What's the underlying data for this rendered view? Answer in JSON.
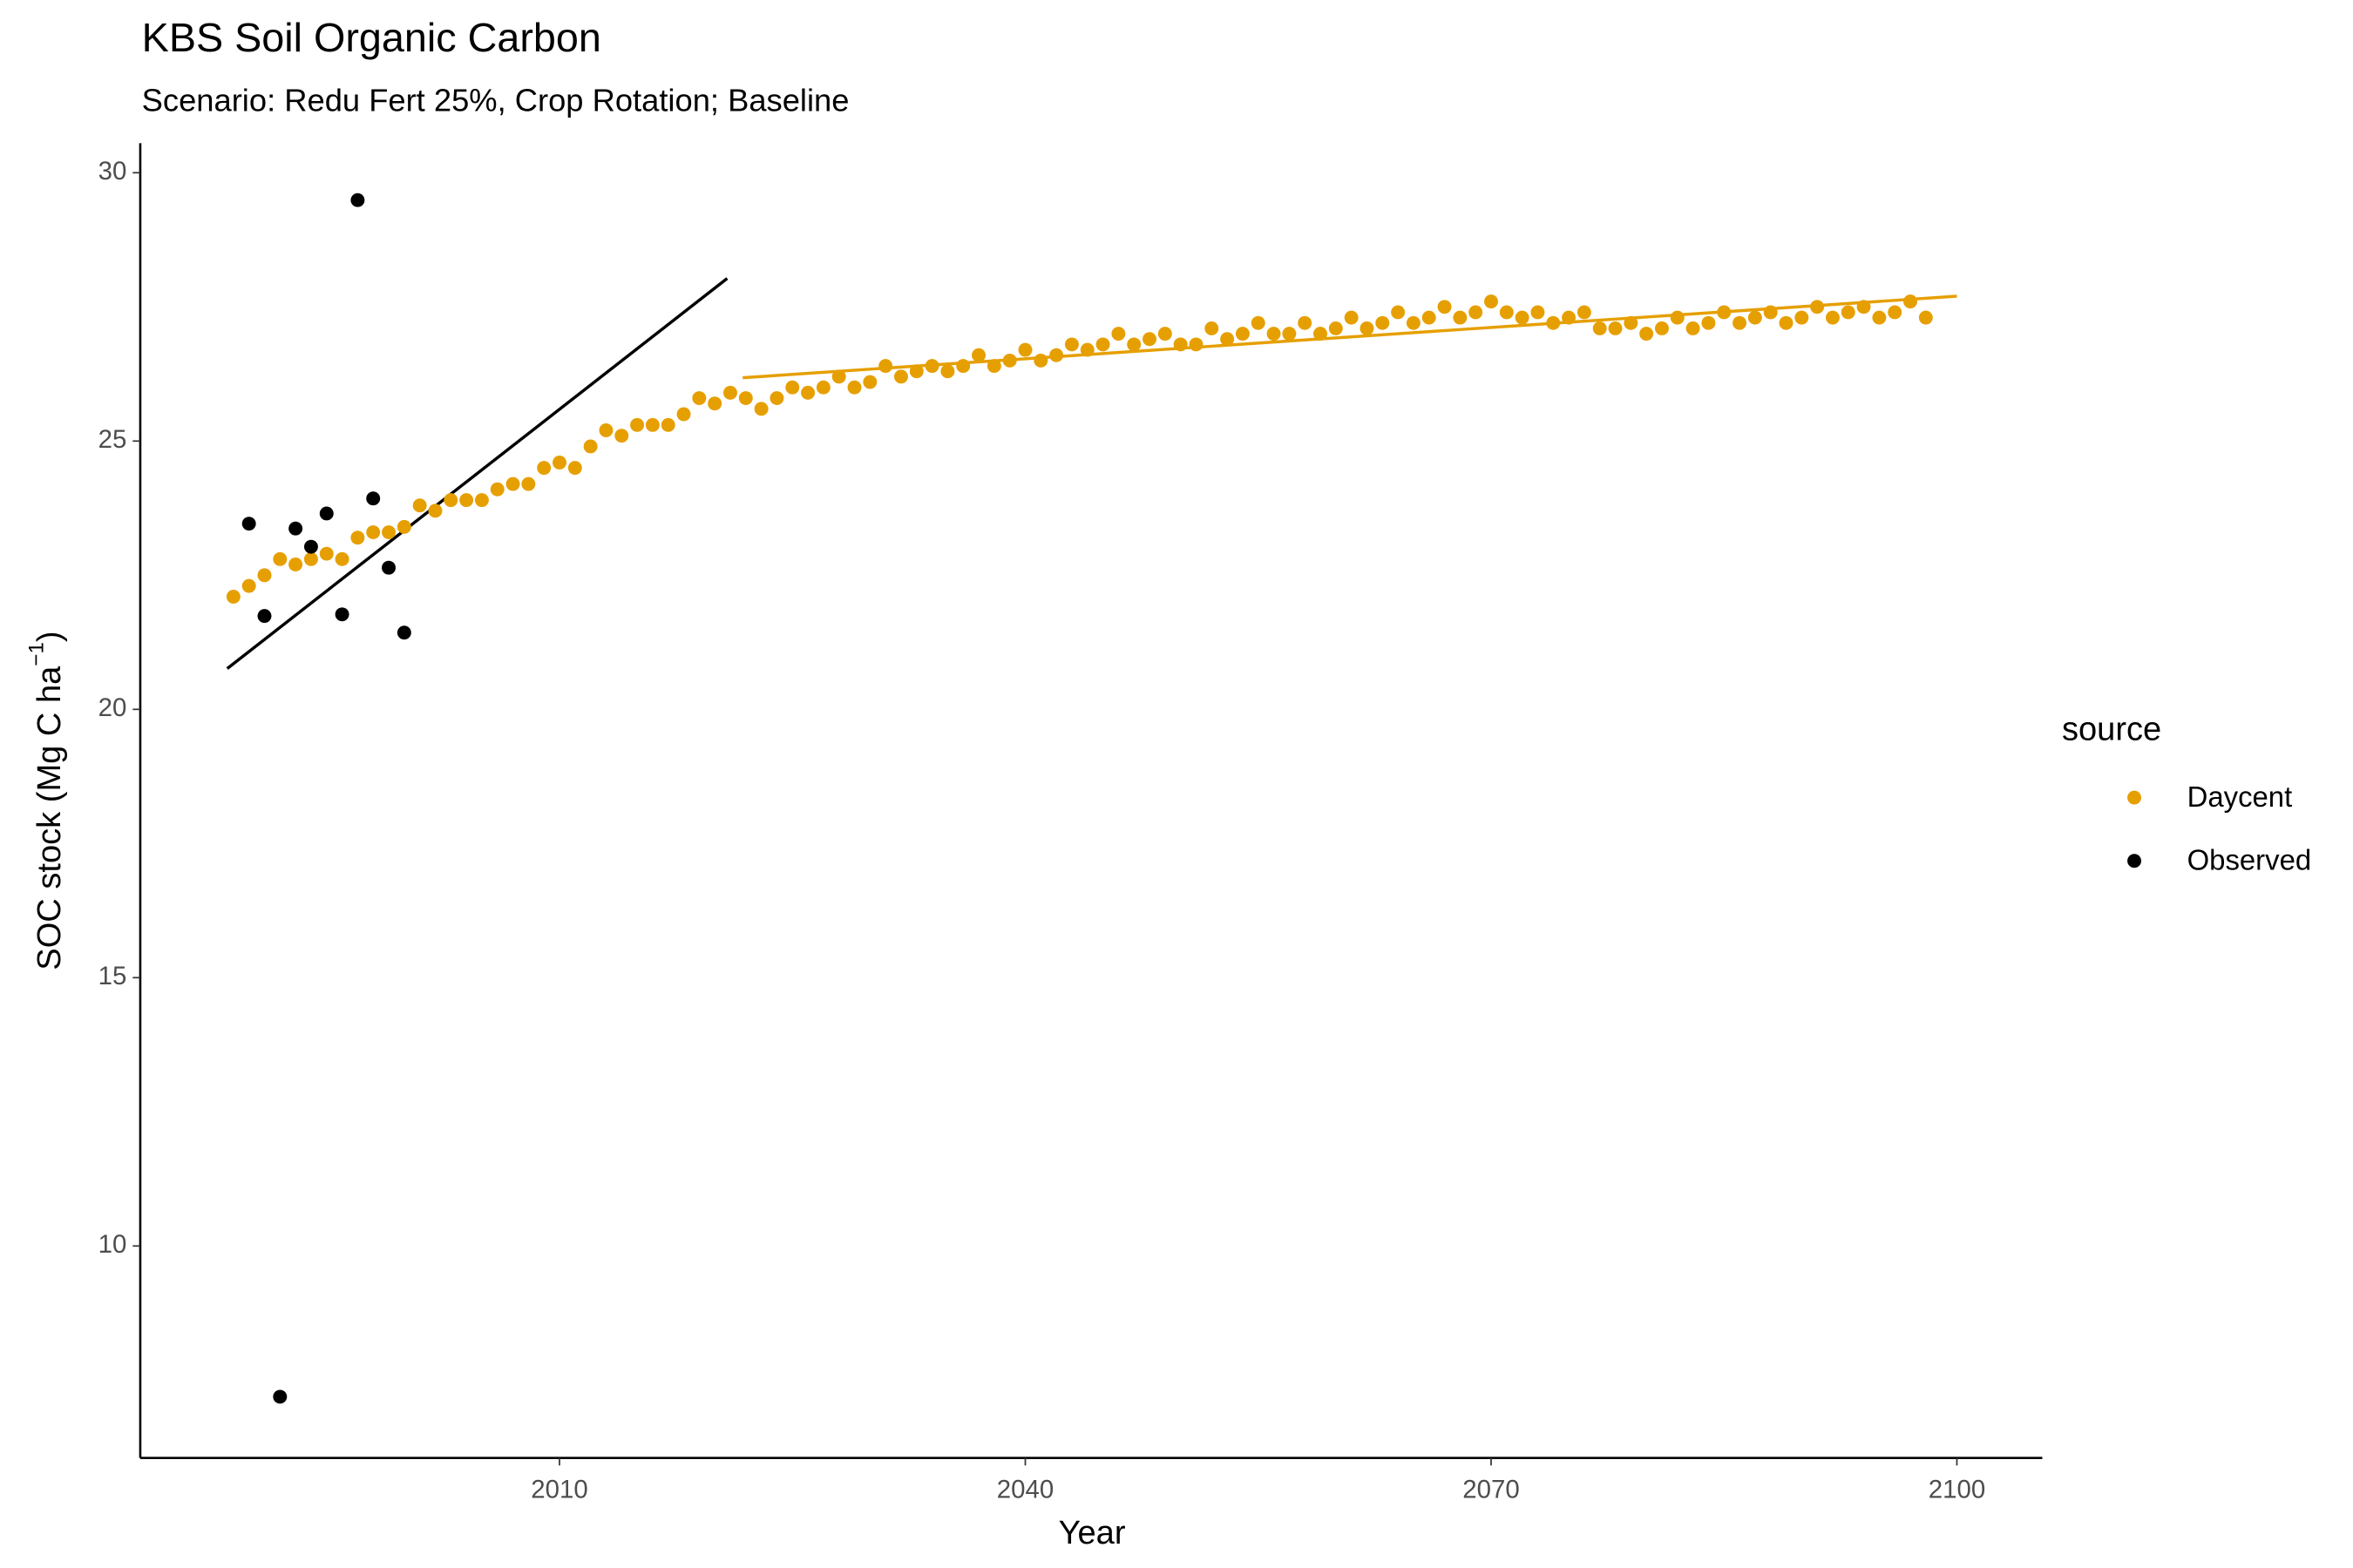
{
  "chart_data": {
    "type": "scatter",
    "title": "KBS Soil Organic Carbon",
    "subtitle": "Scenario: Redu Fert 25%, Crop Rotation; Baseline",
    "xlabel": "Year",
    "ylabel": "SOC stock (Mg C ha",
    "ylabel_sup": "−1",
    "ylabel_end": ")",
    "legend_title": "source",
    "legend": "right",
    "xlim": [
      1983,
      2105.5
    ],
    "ylim": [
      6.05,
      30.55
    ],
    "xticks": [
      2010,
      2040,
      2070,
      2100
    ],
    "yticks": [
      10,
      15,
      20,
      25,
      30
    ],
    "series": [
      {
        "name": "Daycent",
        "color": "#E69F00",
        "x": [
          1989,
          1990,
          1991,
          1992,
          1993,
          1994,
          1995,
          1996,
          1997,
          1998,
          1999,
          2000,
          2001,
          2002,
          2003,
          2004,
          2005,
          2006,
          2007,
          2008,
          2009,
          2010,
          2011,
          2012,
          2013,
          2014,
          2015,
          2016,
          2017,
          2018,
          2019,
          2020,
          2021,
          2022,
          2023,
          2024,
          2025,
          2026,
          2027,
          2028,
          2029,
          2030,
          2031,
          2032,
          2033,
          2034,
          2035,
          2036,
          2037,
          2038,
          2039,
          2040,
          2041,
          2042,
          2043,
          2044,
          2045,
          2046,
          2047,
          2048,
          2049,
          2050,
          2051,
          2052,
          2053,
          2054,
          2055,
          2056,
          2057,
          2058,
          2059,
          2060,
          2061,
          2062,
          2063,
          2064,
          2065,
          2066,
          2067,
          2068,
          2069,
          2070,
          2071,
          2072,
          2073,
          2074,
          2075,
          2076,
          2077,
          2078,
          2079,
          2080,
          2081,
          2082,
          2083,
          2084,
          2085,
          2086,
          2087,
          2088,
          2089,
          2090,
          2091,
          2092,
          2093,
          2094,
          2095,
          2096,
          2097,
          2098
        ],
        "values": [
          22.1,
          22.3,
          22.5,
          22.8,
          22.7,
          22.8,
          22.9,
          22.8,
          23.2,
          23.3,
          23.3,
          23.4,
          23.8,
          23.7,
          23.9,
          23.9,
          23.9,
          24.1,
          24.2,
          24.2,
          24.5,
          24.6,
          24.5,
          24.9,
          25.2,
          25.1,
          25.3,
          25.3,
          25.3,
          25.5,
          25.8,
          25.7,
          25.9,
          25.8,
          25.6,
          25.8,
          26.0,
          25.9,
          26.0,
          26.2,
          26.0,
          26.1,
          26.4,
          26.2,
          26.3,
          26.4,
          26.3,
          26.4,
          26.6,
          26.4,
          26.5,
          26.7,
          26.5,
          26.6,
          26.8,
          26.7,
          26.8,
          27.0,
          26.8,
          26.9,
          27.0,
          26.8,
          26.8,
          27.1,
          26.9,
          27.0,
          27.2,
          27.0,
          27.0,
          27.2,
          27.0,
          27.1,
          27.3,
          27.1,
          27.2,
          27.4,
          27.2,
          27.3,
          27.5,
          27.3,
          27.4,
          27.6,
          27.4,
          27.3,
          27.4,
          27.2,
          27.3,
          27.4,
          27.1,
          27.1,
          27.2,
          27.0,
          27.1,
          27.3,
          27.1,
          27.2,
          27.4,
          27.2,
          27.3,
          27.4,
          27.2,
          27.3,
          27.5,
          27.3,
          27.4,
          27.5,
          27.3,
          27.4,
          27.6,
          27.3
        ]
      },
      {
        "name": "Observed",
        "color": "#000000",
        "x": [
          1990,
          1991,
          1992,
          1993,
          1994,
          1995,
          1996,
          1997,
          1998,
          1999,
          2000
        ],
        "values": [
          23.46,
          21.74,
          7.19,
          23.37,
          23.03,
          23.65,
          21.77,
          29.49,
          23.93,
          22.64,
          21.43
        ]
      }
    ],
    "fit_lines": [
      {
        "color": "#000000",
        "x": [
          1988.6,
          2020.8
        ],
        "values": [
          20.76,
          28.03
        ]
      },
      {
        "color": "#E69F00",
        "x": [
          2021.8,
          2100
        ],
        "values": [
          26.18,
          27.7
        ]
      }
    ]
  }
}
